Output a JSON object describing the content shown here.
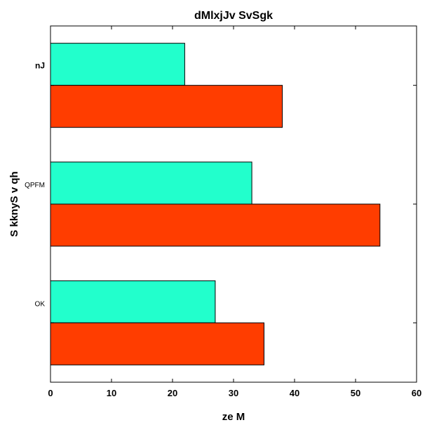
{
  "chart_data": {
    "type": "bar",
    "orientation": "horizontal",
    "title": "dMlxjJv SvSgk",
    "xlabel": "ze M",
    "ylabel": "S kknyS  v qh",
    "xlim": [
      0,
      60
    ],
    "xticks": [
      "0",
      "10",
      "20",
      "30",
      "40",
      "50",
      "60"
    ],
    "categories": [
      "nJ",
      "QPFM",
      "OK"
    ],
    "series": [
      {
        "values": [
          22,
          33,
          27
        ],
        "color": "#22ffcc"
      },
      {
        "values": [
          38,
          54,
          35
        ],
        "color": "#ff3d00"
      }
    ],
    "grid": false,
    "legend": "none"
  }
}
